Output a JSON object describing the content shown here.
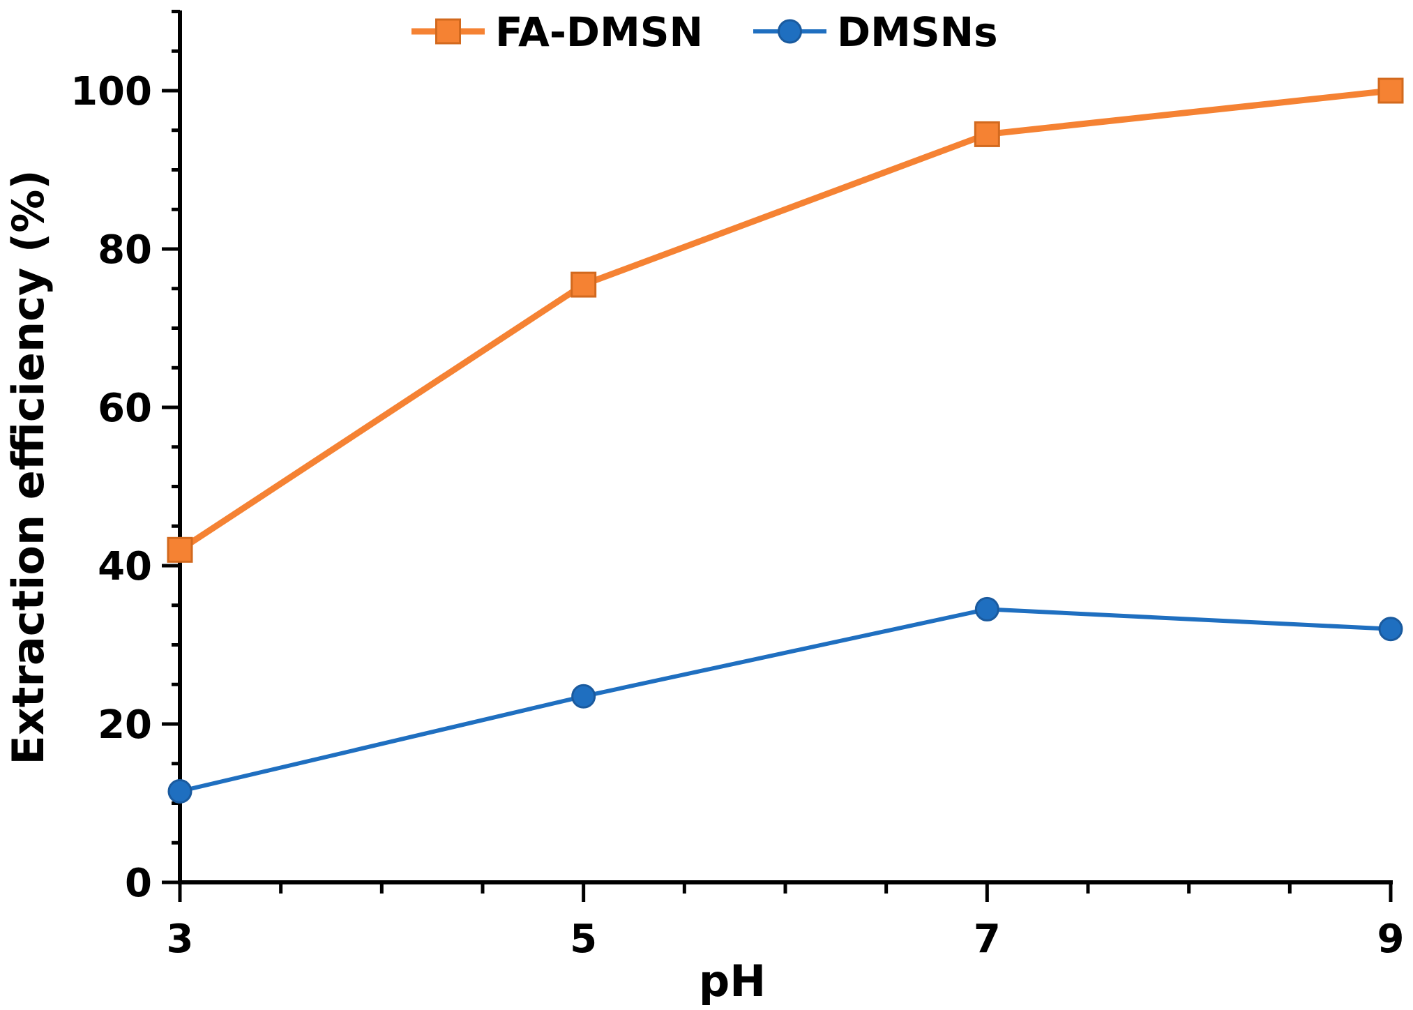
{
  "chart_data": {
    "type": "line",
    "xlabel": "pH",
    "ylabel": "Extraction efficiency (%)",
    "x": [
      3,
      5,
      7,
      9
    ],
    "xlim": [
      3,
      9
    ],
    "ylim": [
      0,
      110
    ],
    "xticks": [
      "3",
      "5",
      "7",
      "9"
    ],
    "yticks": [
      "0",
      "20",
      "40",
      "60",
      "80",
      "100"
    ],
    "grid": false,
    "legend_position": "top",
    "series": [
      {
        "name": "FA-DMSN",
        "values": [
          42,
          75.5,
          94.5,
          100
        ],
        "color": "#F58233",
        "marker": "square"
      },
      {
        "name": "DMSNs",
        "values": [
          11.5,
          23.5,
          34.5,
          32
        ],
        "color": "#1F6FC0",
        "marker": "circle"
      }
    ]
  }
}
